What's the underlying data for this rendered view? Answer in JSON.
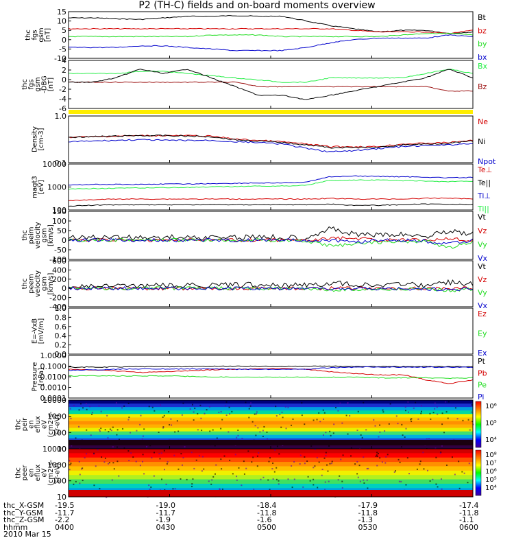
{
  "title": "P2 (TH-C) fields and on-board moments overview",
  "colors": {
    "black": "#000000",
    "red": "#d40000",
    "green": "#22dd22",
    "blue": "#0000cc",
    "darkred": "#9b1010",
    "brightgreen": "#22ee44",
    "yellow": "#ffee00"
  },
  "chart_data": [
    {
      "type": "line",
      "id": "fgs_gsm",
      "ylabel": [
        "thc",
        "fgs",
        "gsm",
        "[nT]"
      ],
      "ylim": [
        -15,
        15
      ],
      "yticks": [
        "15",
        "10",
        "5",
        "0",
        "-5",
        "-10"
      ],
      "series": [
        {
          "name": "Bt",
          "color": "black",
          "values": [
            11,
            11,
            10.5,
            10,
            11,
            12,
            12,
            12.5,
            12,
            12,
            9,
            6,
            4,
            2,
            3,
            3,
            1,
            2
          ]
        },
        {
          "name": "bz",
          "color": "red",
          "values": [
            4,
            4,
            4,
            4,
            4,
            4,
            4,
            4,
            4,
            4,
            4,
            4,
            3,
            2,
            2,
            2,
            1,
            3
          ]
        },
        {
          "name": "by",
          "color": "green",
          "values": [
            -1,
            -1,
            -1,
            -1,
            -1,
            -1,
            0,
            0,
            0,
            -1,
            -1,
            -1,
            -1,
            -1,
            0,
            1,
            1,
            0
          ]
        },
        {
          "name": "bx",
          "color": "blue",
          "values": [
            -8,
            -8,
            -8,
            -7,
            -7,
            -8,
            -9,
            -10,
            -10,
            -10,
            -8,
            -5,
            -3,
            -2,
            -2,
            -2,
            0,
            -1
          ]
        }
      ]
    },
    {
      "type": "line",
      "id": "fgs_gsm_dbg",
      "ylabel": [
        "thc",
        "fgs",
        "gsm",
        "-DBG",
        "[nT]"
      ],
      "ylim": [
        -7,
        4
      ],
      "yticks": [
        "4",
        "2",
        "0",
        "-2",
        "-4",
        "-6"
      ],
      "series": [
        {
          "name": "Bx",
          "color": "brightgreen",
          "values": [
            1,
            1,
            1,
            1.5,
            1.5,
            1,
            0.5,
            0,
            -0.5,
            -1,
            -1,
            0,
            0,
            0,
            0,
            1,
            2,
            1
          ]
        },
        {
          "name": "Bz",
          "color": "darkred",
          "values": [
            -1,
            -1,
            -1,
            -1,
            -1,
            -1,
            -1,
            -1,
            -2,
            -2,
            -2,
            -2,
            -2,
            -2,
            -2,
            -2,
            -3,
            -3
          ]
        },
        {
          "name": "",
          "color": "black",
          "values": [
            -1,
            -1,
            0,
            2,
            1,
            2,
            0,
            -2,
            -4,
            -4,
            -5,
            -4,
            -3,
            -2,
            -1,
            0,
            2,
            0
          ]
        }
      ]
    },
    {
      "type": "line",
      "id": "density",
      "ylabel": [
        "Density",
        "[cm-3]"
      ],
      "ylim": [
        0.1,
        1.0
      ],
      "yticks": [
        "1.0",
        "0.1"
      ],
      "scale": "log",
      "series": [
        {
          "name": "Ne",
          "color": "red",
          "values": [
            0.35,
            0.36,
            0.37,
            0.38,
            0.38,
            0.38,
            0.37,
            0.32,
            0.3,
            0.28,
            0.25,
            0.22,
            0.22,
            0.22,
            0.25,
            0.26,
            0.27,
            0.3
          ]
        },
        {
          "name": "Ni",
          "color": "black",
          "values": [
            0.35,
            0.36,
            0.37,
            0.38,
            0.38,
            0.37,
            0.36,
            0.31,
            0.29,
            0.27,
            0.24,
            0.21,
            0.21,
            0.21,
            0.24,
            0.25,
            0.26,
            0.29
          ]
        },
        {
          "name": "Npot",
          "color": "blue",
          "values": [
            0.28,
            0.29,
            0.3,
            0.31,
            0.3,
            0.3,
            0.3,
            0.28,
            0.27,
            0.25,
            0.2,
            0.17,
            0.18,
            0.2,
            0.22,
            0.23,
            0.24,
            0.26
          ]
        }
      ]
    },
    {
      "type": "line",
      "id": "temperature",
      "ylabel": [
        "magt3",
        "[eV]"
      ],
      "ylim": [
        100,
        10000
      ],
      "yticks": [
        "10000",
        "1000",
        "100"
      ],
      "scale": "log",
      "series": [
        {
          "name": "Te⊥",
          "color": "red",
          "values": [
            250,
            280,
            300,
            300,
            300,
            300,
            300,
            300,
            300,
            300,
            300,
            320,
            300,
            300,
            300,
            320,
            330,
            300
          ]
        },
        {
          "name": "Te||",
          "color": "black",
          "values": [
            150,
            160,
            170,
            170,
            170,
            170,
            170,
            170,
            170,
            170,
            170,
            180,
            160,
            160,
            170,
            180,
            180,
            170
          ]
        },
        {
          "name": "Ti⊥",
          "color": "blue",
          "values": [
            1200,
            1300,
            1300,
            1300,
            1350,
            1350,
            1400,
            1450,
            1500,
            1500,
            1600,
            2800,
            3000,
            2900,
            2800,
            2700,
            2500,
            2600
          ]
        },
        {
          "name": "Ti||",
          "color": "brightgreen",
          "values": [
            800,
            850,
            900,
            900,
            950,
            950,
            1000,
            1050,
            1100,
            1100,
            1200,
            1900,
            2000,
            2000,
            1900,
            1800,
            1700,
            1800
          ]
        }
      ]
    },
    {
      "type": "line",
      "id": "peim_velocity",
      "ylabel": [
        "thc",
        "peim",
        "velocity",
        "gsm",
        "[km/s]"
      ],
      "ylim": [
        -100,
        150
      ],
      "yticks": [
        "150",
        "100",
        "50",
        "0",
        "-50",
        "-100"
      ],
      "series": [
        {
          "name": "Vt",
          "color": "black",
          "values": [
            15,
            15,
            15,
            15,
            15,
            15,
            15,
            15,
            20,
            15,
            15,
            60,
            30,
            25,
            30,
            20,
            50,
            30
          ]
        },
        {
          "name": "Vz",
          "color": "red",
          "values": [
            0,
            0,
            0,
            0,
            0,
            0,
            0,
            0,
            0,
            0,
            0,
            10,
            10,
            0,
            0,
            0,
            10,
            0
          ]
        },
        {
          "name": "Vy",
          "color": "green",
          "values": [
            0,
            0,
            0,
            0,
            0,
            0,
            0,
            0,
            0,
            0,
            -5,
            -30,
            -20,
            -10,
            -10,
            -5,
            -40,
            -10
          ]
        },
        {
          "name": "Vx",
          "color": "blue",
          "values": [
            0,
            0,
            0,
            0,
            0,
            0,
            0,
            0,
            0,
            0,
            0,
            0,
            -10,
            0,
            0,
            -5,
            -20,
            0
          ]
        }
      ]
    },
    {
      "type": "line",
      "id": "peem_velocity",
      "ylabel": [
        "thc",
        "peem",
        "velocity",
        "gsm",
        "[km/s]"
      ],
      "ylim": [
        -400,
        600
      ],
      "yticks": [
        "600",
        "400",
        "200",
        "0",
        "-200",
        "-400"
      ],
      "series": [
        {
          "name": "Vt",
          "color": "black",
          "values": [
            50,
            50,
            50,
            50,
            60,
            60,
            70,
            70,
            80,
            70,
            70,
            110,
            90,
            80,
            80,
            70,
            130,
            90
          ]
        },
        {
          "name": "Vz",
          "color": "red",
          "values": [
            0,
            0,
            0,
            0,
            0,
            0,
            0,
            0,
            0,
            0,
            0,
            0,
            0,
            0,
            0,
            0,
            0,
            0
          ]
        },
        {
          "name": "Vy",
          "color": "green",
          "values": [
            0,
            0,
            0,
            0,
            0,
            0,
            0,
            0,
            0,
            -10,
            0,
            -40,
            -20,
            -20,
            -20,
            -10,
            -50,
            -20
          ]
        },
        {
          "name": "Vx",
          "color": "blue",
          "values": [
            0,
            0,
            0,
            0,
            0,
            0,
            0,
            0,
            0,
            0,
            0,
            -20,
            -10,
            -10,
            -10,
            -10,
            -30,
            -10
          ]
        }
      ]
    },
    {
      "type": "line",
      "id": "efield",
      "ylabel": [
        "E=-VxB",
        "[mV/m]"
      ],
      "ylim": [
        0,
        1.0
      ],
      "yticks": [
        "1.0",
        "0.8",
        "0.6",
        "0.4",
        "0.2",
        "0.0"
      ],
      "series": [
        {
          "name": "Ez",
          "color": "red",
          "values": []
        },
        {
          "name": "Ey",
          "color": "green",
          "values": []
        },
        {
          "name": "Ex",
          "color": "blue",
          "values": []
        }
      ]
    },
    {
      "type": "line",
      "id": "pressure",
      "ylabel": [
        "Pressure",
        "[nPa]"
      ],
      "ylim": [
        0.0001,
        1.0
      ],
      "yticks": [
        "1.0000",
        "0.1000",
        "0.0100",
        "0.0010",
        "0.0001"
      ],
      "scale": "log",
      "series": [
        {
          "name": "Pt",
          "color": "black",
          "values": [
            0.08,
            0.08,
            0.085,
            0.09,
            0.09,
            0.09,
            0.095,
            0.095,
            0.095,
            0.095,
            0.095,
            0.1,
            0.09,
            0.09,
            0.09,
            0.09,
            0.09,
            0.09
          ]
        },
        {
          "name": "Pb",
          "color": "red",
          "values": [
            0.05,
            0.045,
            0.035,
            0.025,
            0.03,
            0.035,
            0.045,
            0.05,
            0.055,
            0.06,
            0.05,
            0.03,
            0.02,
            0.015,
            0.015,
            0.005,
            0.002,
            0.005
          ]
        },
        {
          "name": "Pe",
          "color": "green",
          "values": [
            0.012,
            0.012,
            0.012,
            0.012,
            0.012,
            0.011,
            0.01,
            0.009,
            0.009,
            0.009,
            0.009,
            0.009,
            0.009,
            0.008,
            0.008,
            0.008,
            0.007,
            0.008
          ]
        },
        {
          "name": "Pi",
          "color": "blue",
          "values": [
            0.04,
            0.045,
            0.05,
            0.055,
            0.055,
            0.055,
            0.055,
            0.05,
            0.05,
            0.05,
            0.05,
            0.07,
            0.08,
            0.08,
            0.08,
            0.08,
            0.08,
            0.08
          ]
        }
      ]
    },
    {
      "type": "heatmap",
      "id": "peir_spectrogram",
      "ylabel": [
        "thc",
        "peir",
        "en",
        "eflux",
        "eV",
        "(cm2-s-",
        "sr-eV)"
      ],
      "ylim": [
        10,
        10000
      ],
      "yticks": [
        "10000",
        "1000",
        "100",
        "10"
      ],
      "scale": "log",
      "colorbar_ticks": [
        "10⁶",
        "10⁵",
        "10⁴"
      ]
    },
    {
      "type": "heatmap",
      "id": "peer_spectrogram",
      "ylabel": [
        "thc",
        "peer",
        "en",
        "eflux",
        "eV",
        "(cm2-s-",
        "sr-eV)"
      ],
      "ylim": [
        10,
        10000
      ],
      "yticks": [
        "10000",
        "1000",
        "100",
        "10"
      ],
      "scale": "log",
      "colorbar_ticks": [
        "10⁸",
        "10⁷",
        "10⁶",
        "10⁵",
        "10⁴"
      ]
    }
  ],
  "footer": {
    "rows": [
      {
        "label": "thc_X-GSM",
        "values": [
          "-19.5",
          "-19.0",
          "-18.4",
          "-17.9",
          "-17.4"
        ]
      },
      {
        "label": "thc_Y-GSM",
        "values": [
          "-11.7",
          "-11.7",
          "-11.8",
          "-11.8",
          "-11.8"
        ]
      },
      {
        "label": "thc_Z-GSM",
        "values": [
          "-2.2",
          "-1.9",
          "-1.6",
          "-1.3",
          "-1.1"
        ]
      },
      {
        "label": "hhmm",
        "values": [
          "0400",
          "0430",
          "0500",
          "0530",
          "0600"
        ]
      }
    ],
    "date": "2010 Mar 15"
  }
}
